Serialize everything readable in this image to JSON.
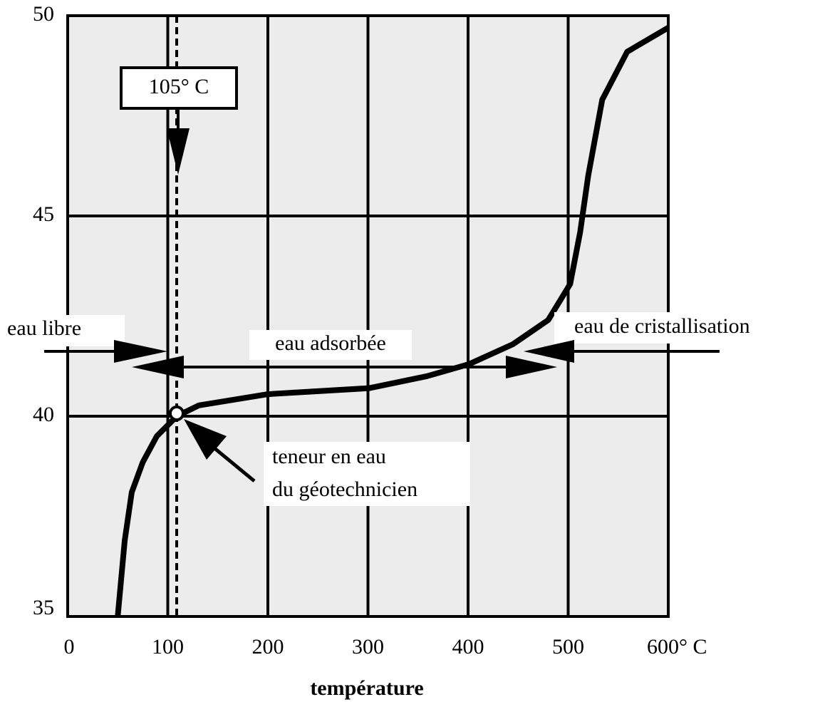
{
  "chart_data": {
    "type": "line",
    "x": [
      50,
      57,
      64,
      75,
      89,
      109,
      131,
      200,
      301,
      359,
      401,
      445,
      480,
      502,
      512,
      520,
      534,
      559,
      600
    ],
    "series": [
      {
        "color": "#000000",
        "values": [
          35,
          36.9,
          38.1,
          38.85,
          39.5,
          40,
          40.27,
          40.55,
          40.7,
          41,
          41.3,
          41.8,
          42.4,
          43.3,
          44.6,
          46.0,
          47.9,
          49.1,
          49.7
        ]
      }
    ],
    "xlabel": "température",
    "xlim": [
      0,
      600
    ],
    "xticks": [
      0,
      100,
      200,
      300,
      400,
      500,
      {
        "value": 600,
        "label": "600° C"
      }
    ],
    "ylim": [
      35,
      50
    ],
    "yticks": [
      35,
      40,
      45,
      50
    ],
    "grid": true,
    "annotations": {
      "threshold": "105° C",
      "free": "eau libre",
      "adsorbed": "eau adsorbée",
      "crystal": "eau de cristallisation",
      "point": [
        "teneur en eau",
        "du géotechnicien"
      ]
    }
  }
}
